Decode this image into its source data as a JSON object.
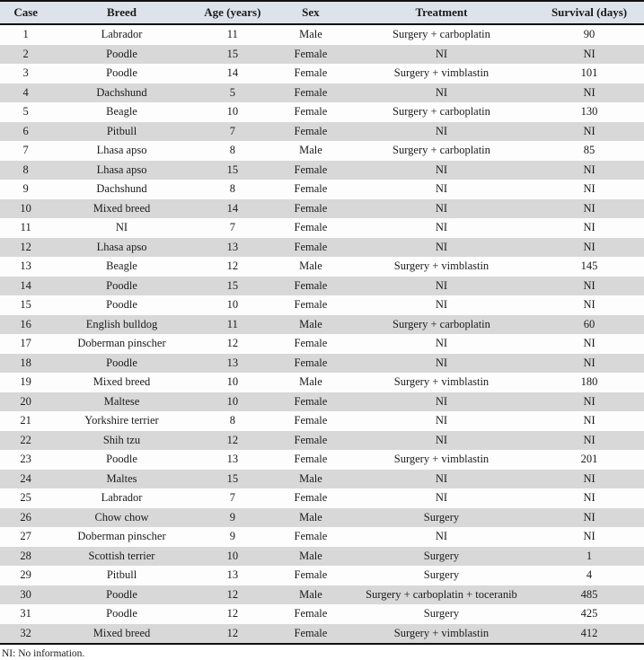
{
  "table": {
    "columns": [
      "Case",
      "Breed",
      "Age (years)",
      "Sex",
      "Treatment",
      "Survival (days)"
    ],
    "rows": [
      [
        "1",
        "Labrador",
        "11",
        "Male",
        "Surgery + carboplatin",
        "90"
      ],
      [
        "2",
        "Poodle",
        "15",
        "Female",
        "NI",
        "NI"
      ],
      [
        "3",
        "Poodle",
        "14",
        "Female",
        "Surgery + vimblastin",
        "101"
      ],
      [
        "4",
        "Dachshund",
        "5",
        "Female",
        "NI",
        "NI"
      ],
      [
        "5",
        "Beagle",
        "10",
        "Female",
        "Surgery + carboplatin",
        "130"
      ],
      [
        "6",
        "Pitbull",
        "7",
        "Female",
        "NI",
        "NI"
      ],
      [
        "7",
        "Lhasa apso",
        "8",
        "Male",
        "Surgery + carboplatin",
        "85"
      ],
      [
        "8",
        "Lhasa apso",
        "15",
        "Female",
        "NI",
        "NI"
      ],
      [
        "9",
        "Dachshund",
        "8",
        "Female",
        "NI",
        "NI"
      ],
      [
        "10",
        "Mixed breed",
        "14",
        "Female",
        "NI",
        "NI"
      ],
      [
        "11",
        "NI",
        "7",
        "Female",
        "NI",
        "NI"
      ],
      [
        "12",
        "Lhasa apso",
        "13",
        "Female",
        "NI",
        "NI"
      ],
      [
        "13",
        "Beagle",
        "12",
        "Male",
        "Surgery + vimblastin",
        "145"
      ],
      [
        "14",
        "Poodle",
        "15",
        "Female",
        "NI",
        "NI"
      ],
      [
        "15",
        "Poodle",
        "10",
        "Female",
        "NI",
        "NI"
      ],
      [
        "16",
        "English bulldog",
        "11",
        "Male",
        "Surgery + carboplatin",
        "60"
      ],
      [
        "17",
        "Doberman pinscher",
        "12",
        "Female",
        "NI",
        "NI"
      ],
      [
        "18",
        "Poodle",
        "13",
        "Female",
        "NI",
        "NI"
      ],
      [
        "19",
        "Mixed breed",
        "10",
        "Male",
        "Surgery + vimblastin",
        "180"
      ],
      [
        "20",
        "Maltese",
        "10",
        "Female",
        "NI",
        "NI"
      ],
      [
        "21",
        "Yorkshire terrier",
        "8",
        "Female",
        "NI",
        "NI"
      ],
      [
        "22",
        "Shih tzu",
        "12",
        "Female",
        "NI",
        "NI"
      ],
      [
        "23",
        "Poodle",
        "13",
        "Female",
        "Surgery + vimblastin",
        "201"
      ],
      [
        "24",
        "Maltes",
        "15",
        "Male",
        "NI",
        "NI"
      ],
      [
        "25",
        "Labrador",
        "7",
        "Female",
        "NI",
        "NI"
      ],
      [
        "26",
        "Chow chow",
        "9",
        "Male",
        "Surgery",
        "NI"
      ],
      [
        "27",
        "Doberman pinscher",
        "9",
        "Female",
        "NI",
        "NI"
      ],
      [
        "28",
        "Scottish terrier",
        "10",
        "Male",
        "Surgery",
        "1"
      ],
      [
        "29",
        "Pitbull",
        "13",
        "Female",
        "Surgery",
        "4"
      ],
      [
        "30",
        "Poodle",
        "12",
        "Male",
        "Surgery + carboplatin + toceranib",
        "485"
      ],
      [
        "31",
        "Poodle",
        "12",
        "Female",
        "Surgery",
        "425"
      ],
      [
        "32",
        "Mixed breed",
        "12",
        "Female",
        "Surgery + vimblastin",
        "412"
      ]
    ],
    "footnote": "NI: No information."
  },
  "colors": {
    "header_bg": "#dce3ea",
    "row_alt_bg": "#d8d8d8",
    "row_bg": "#fdfdfd",
    "border": "#111111",
    "text": "#1b1b1b"
  }
}
